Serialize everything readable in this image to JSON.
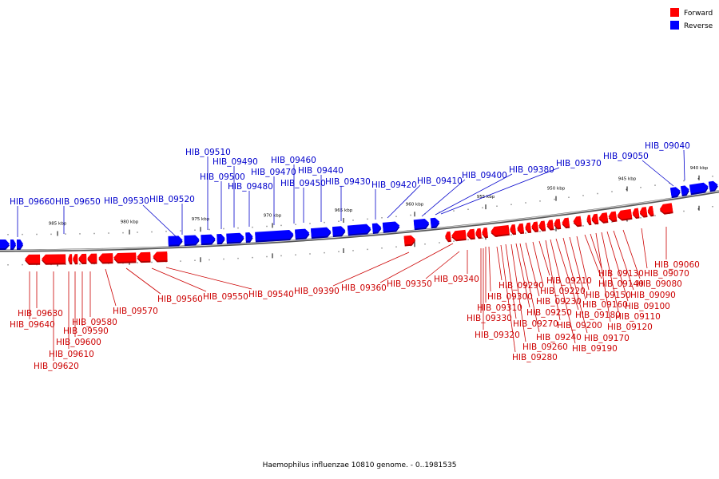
{
  "colors": {
    "forward": "#ff0000",
    "reverse": "#0000ff",
    "forward_dark": "#b00000",
    "reverse_dark": "#0000aa",
    "backbone": "#888888",
    "label_forward": "#cc0000",
    "label_reverse": "#0000cc"
  },
  "legend": {
    "forward": "Forward",
    "reverse": "Reverse"
  },
  "caption": "Haemophilus influenzae 10810 genome. - 0..1981535",
  "scale_ticks": [
    "985 kbp",
    "980 kbp",
    "975 kbp",
    "970 kbp",
    "965 kbp",
    "960 kbp",
    "955 kbp",
    "950 kbp",
    "945 kbp",
    "940 kbp"
  ],
  "reverse_labels": [
    "HIB_09660",
    "HIB_09650",
    "HIB_09530",
    "HIB_09520",
    "HIB_09510",
    "HIB_09500",
    "HIB_09490",
    "HIB_09480",
    "HIB_09470",
    "HIB_09460",
    "HIB_09450",
    "HIB_09440",
    "HIB_09430",
    "HIB_09420",
    "HIB_09410",
    "HIB_09400",
    "HIB_09380",
    "HIB_09370",
    "HIB_09050",
    "HIB_09040"
  ],
  "forward_labels": [
    "HIB_09640",
    "HIB_09630",
    "HIB_09620",
    "HIB_09610",
    "HIB_09600",
    "HIB_09590",
    "HIB_09580",
    "HIB_09570",
    "HIB_09560",
    "HIB_09550",
    "HIB_09540",
    "HIB_09390",
    "HIB_09360",
    "HIB_09350",
    "HIB_09340",
    "HIB_09330",
    "HIB_09320",
    "HIB_09310",
    "HIB_09300",
    "HIB_09290",
    "HIB_09280",
    "HIB_09270",
    "HIB_09260",
    "HIB_09250",
    "HIB_09240",
    "HIB_09230",
    "HIB_09220",
    "HIB_09210",
    "HIB_09200",
    "HIB_09190",
    "HIB_09180",
    "HIB_09170",
    "HIB_09160",
    "HIB_09150",
    "HIB_09140",
    "HIB_09130",
    "HIB_09120",
    "HIB_09110",
    "HIB_09100",
    "HIB_09090",
    "HIB_09080",
    "HIB_09070",
    "HIB_09060"
  ]
}
